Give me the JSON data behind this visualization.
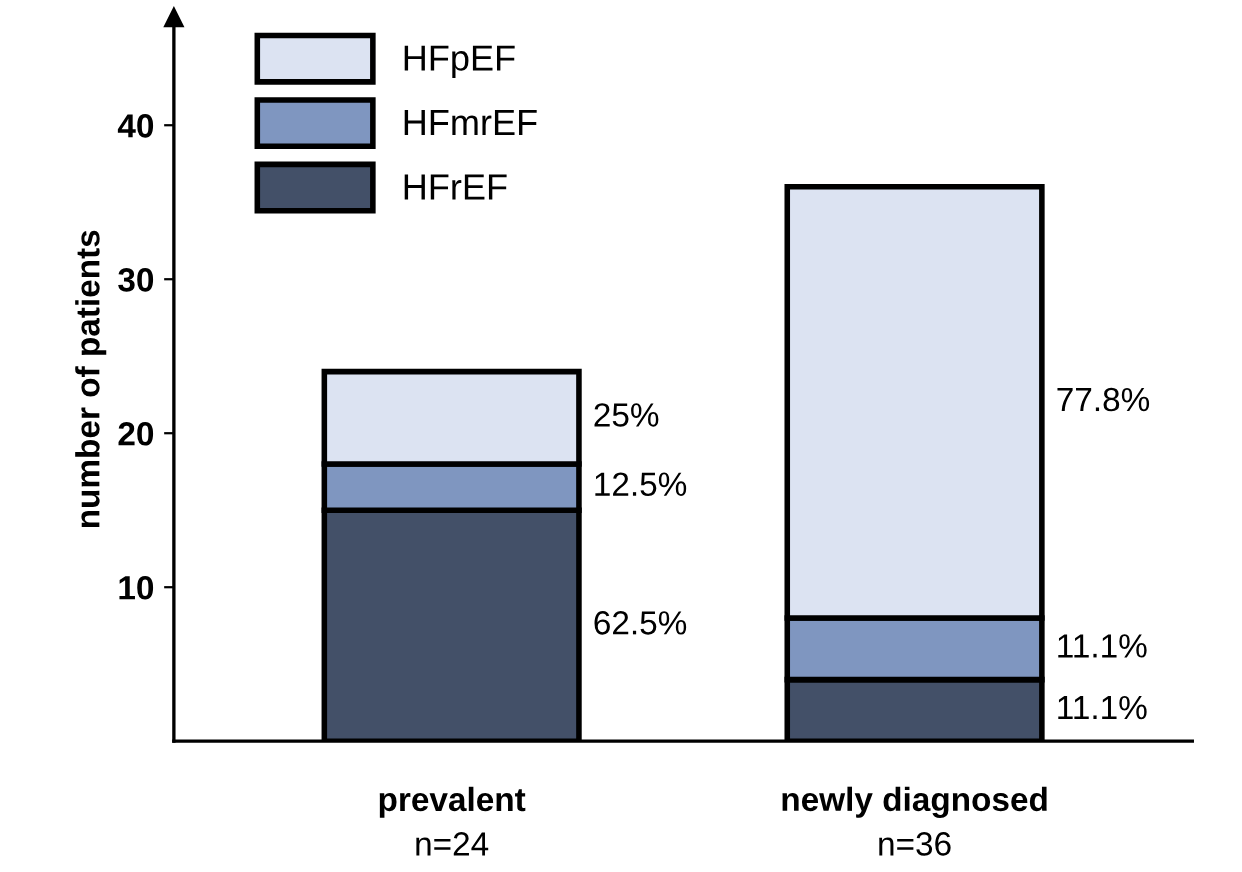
{
  "chart_data": {
    "type": "bar",
    "stacked": true,
    "ylabel": "number of patients",
    "categories": [
      "prevalent\nn=24",
      "newly diagnosed\nn=36"
    ],
    "series": [
      {
        "name": "HFrEF",
        "color": "#435068",
        "values": [
          15,
          4
        ]
      },
      {
        "name": "HFmrEF",
        "color": "#7f96c0",
        "values": [
          3,
          4
        ]
      },
      {
        "name": "HFpEF",
        "color": "#dce3f2",
        "values": [
          6,
          28
        ]
      }
    ],
    "annotations": [
      "62.5%",
      "11.1%",
      "12.5%",
      "11.1%",
      "25%",
      "77.8%"
    ],
    "ylim": [
      0,
      47
    ],
    "yticks": [
      10,
      20,
      30,
      40
    ],
    "grid": false,
    "legend": "top left"
  }
}
